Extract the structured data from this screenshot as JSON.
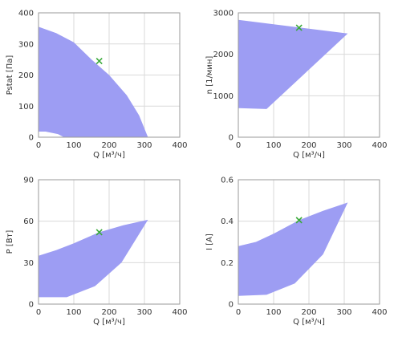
{
  "colors": {
    "envelope": "#9d9df3",
    "marker": "#3aaa3a"
  },
  "chart_data": [
    {
      "type": "area",
      "xlabel": "Q [м³/ч]",
      "ylabel": "Pstat [Па]",
      "xlim": [
        0,
        400
      ],
      "ylim": [
        0,
        400
      ],
      "xticks": [
        0,
        100,
        200,
        300,
        400
      ],
      "yticks": [
        0,
        100,
        200,
        300,
        400
      ],
      "grid": true,
      "envelope": [
        [
          0,
          355
        ],
        [
          50,
          335
        ],
        [
          100,
          305
        ],
        [
          150,
          250
        ],
        [
          200,
          200
        ],
        [
          250,
          135
        ],
        [
          285,
          70
        ],
        [
          310,
          0
        ],
        [
          72,
          0
        ],
        [
          55,
          10
        ],
        [
          20,
          18
        ],
        [
          0,
          18
        ]
      ],
      "operating_point": {
        "x": 172,
        "y": 245
      }
    },
    {
      "type": "area",
      "xlabel": "Q [м³/ч]",
      "ylabel": "n [1/мин]",
      "xlim": [
        0,
        400
      ],
      "ylim": [
        0,
        3000
      ],
      "xticks": [
        0,
        100,
        200,
        300,
        400
      ],
      "yticks": [
        0,
        1000,
        2000,
        3000
      ],
      "grid": true,
      "envelope": [
        [
          0,
          2830
        ],
        [
          310,
          2500
        ],
        [
          80,
          680
        ],
        [
          0,
          700
        ]
      ],
      "operating_point": {
        "x": 172,
        "y": 2640
      }
    },
    {
      "type": "area",
      "xlabel": "Q [м³/ч]",
      "ylabel": "P [Вт]",
      "xlim": [
        0,
        400
      ],
      "ylim": [
        0,
        90
      ],
      "xticks": [
        0,
        100,
        200,
        300,
        400
      ],
      "yticks": [
        0,
        30,
        60,
        90
      ],
      "grid": true,
      "envelope": [
        [
          0,
          35
        ],
        [
          50,
          39
        ],
        [
          100,
          44
        ],
        [
          172,
          52
        ],
        [
          240,
          57
        ],
        [
          310,
          61
        ],
        [
          235,
          30
        ],
        [
          160,
          13
        ],
        [
          80,
          5
        ],
        [
          0,
          5
        ]
      ],
      "operating_point": {
        "x": 172,
        "y": 52
      }
    },
    {
      "type": "area",
      "xlabel": "Q [м³/ч]",
      "ylabel": "I [A]",
      "xlim": [
        0,
        400
      ],
      "ylim": [
        0,
        0.6
      ],
      "xticks": [
        0,
        100,
        200,
        300,
        400
      ],
      "yticks": [
        0,
        0.2,
        0.4,
        0.6
      ],
      "ytick_labels": [
        "0",
        "0.2",
        "0.4",
        "0.6"
      ],
      "grid": true,
      "envelope": [
        [
          0,
          0.28
        ],
        [
          50,
          0.3
        ],
        [
          100,
          0.34
        ],
        [
          172,
          0.405
        ],
        [
          240,
          0.45
        ],
        [
          310,
          0.49
        ],
        [
          240,
          0.24
        ],
        [
          160,
          0.1
        ],
        [
          80,
          0.045
        ],
        [
          0,
          0.04
        ]
      ],
      "operating_point": {
        "x": 172,
        "y": 0.405
      }
    }
  ]
}
